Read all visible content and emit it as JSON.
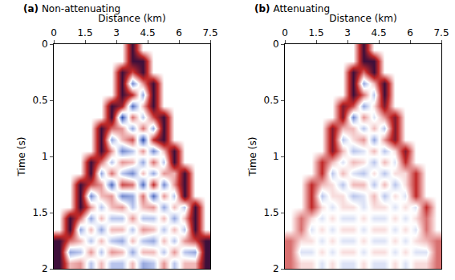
{
  "chart_data": [
    {
      "type": "heatmap",
      "title": "(a) Non-attenuating",
      "x_label": "Distance (km)",
      "y_label": "Time (s)",
      "x": [
        0.25,
        0.75,
        1.25,
        1.75,
        2.25,
        2.75,
        3.25,
        3.75,
        4.25,
        4.75,
        5.25,
        5.75,
        6.25,
        6.75,
        7.25
      ],
      "y": [
        0.05,
        0.15,
        0.25,
        0.35,
        0.45,
        0.55,
        0.65,
        0.75,
        0.85,
        0.95,
        1.05,
        1.15,
        1.25,
        1.35,
        1.45,
        1.55,
        1.65,
        1.75,
        1.85,
        1.95
      ],
      "z": [
        [
          0,
          0,
          0,
          0,
          0,
          0,
          0,
          1,
          0,
          0,
          0,
          0,
          0,
          0,
          0
        ],
        [
          0,
          0,
          0,
          0,
          0,
          0,
          0,
          1,
          1,
          0,
          0,
          0,
          0,
          0,
          0
        ],
        [
          0,
          0,
          0,
          0,
          0,
          0,
          1,
          0.5,
          1,
          0,
          0,
          0,
          0,
          0,
          0
        ],
        [
          0,
          0,
          0,
          0,
          0,
          0,
          1,
          -0.4,
          0.3,
          1,
          0,
          0,
          0,
          0,
          0
        ],
        [
          0,
          0,
          0,
          0,
          0,
          0,
          1,
          0.6,
          -0.3,
          1,
          0,
          0,
          0,
          0,
          0
        ],
        [
          0,
          0,
          0,
          0,
          0,
          1,
          0.7,
          -0.5,
          0.2,
          1,
          0,
          0,
          0,
          0,
          0
        ],
        [
          0,
          0,
          0,
          0,
          0,
          1,
          -0.6,
          0.4,
          -0.2,
          0.5,
          1,
          0,
          0,
          0,
          0
        ],
        [
          0,
          0,
          0,
          0,
          1,
          0.4,
          0.3,
          -0.3,
          0.4,
          -0.3,
          1,
          0,
          0,
          0,
          0
        ],
        [
          0,
          0,
          0,
          0,
          1,
          -0.3,
          0.2,
          0.5,
          -0.6,
          0.6,
          1,
          0,
          0,
          0,
          0
        ],
        [
          0,
          0,
          0,
          0,
          1,
          0.3,
          -0.4,
          -0.2,
          0.3,
          -0.4,
          0.2,
          1,
          0,
          0,
          0
        ],
        [
          0,
          0,
          0,
          1,
          0.4,
          -0.2,
          0.3,
          0.2,
          -0.3,
          0.4,
          -0.2,
          1,
          0,
          0,
          0
        ],
        [
          0,
          0,
          0,
          1,
          -0.3,
          0.4,
          -0.2,
          -0.4,
          0.2,
          -0.3,
          0.3,
          0.2,
          1,
          0,
          0
        ],
        [
          0,
          0,
          1,
          0.5,
          0.3,
          -0.5,
          0.5,
          0.4,
          -0.5,
          0.6,
          -0.4,
          0.3,
          1,
          0,
          0
        ],
        [
          0,
          0,
          1,
          -0.4,
          0.2,
          0.3,
          -0.4,
          -0.3,
          0.4,
          -0.5,
          0.3,
          -0.2,
          1,
          0,
          0
        ],
        [
          0,
          0,
          1,
          0.3,
          -0.2,
          0.2,
          0.3,
          -0.2,
          0.2,
          0.3,
          -0.3,
          0.2,
          -0.2,
          1,
          0
        ],
        [
          0,
          1,
          0.4,
          -0.3,
          0.2,
          -0.2,
          -0.2,
          0.3,
          -0.2,
          -0.2,
          0.2,
          -0.3,
          0.2,
          1,
          0
        ],
        [
          0,
          1,
          -0.3,
          0.2,
          -0.3,
          0.2,
          0.2,
          -0.2,
          0.3,
          0.2,
          -0.2,
          0.2,
          -0.2,
          1,
          0
        ],
        [
          1,
          0.4,
          0.2,
          -0.2,
          0.2,
          -0.2,
          -0.3,
          0.2,
          -0.2,
          -0.3,
          0.2,
          -0.2,
          0.3,
          0.5,
          1
        ],
        [
          1,
          -0.3,
          -0.2,
          0.3,
          -0.2,
          0.3,
          0.2,
          -0.3,
          0.2,
          0.2,
          -0.2,
          0.3,
          -0.2,
          -0.3,
          1
        ],
        [
          1,
          0.2,
          0.3,
          -0.2,
          0.2,
          -0.2,
          -0.2,
          0.2,
          -0.3,
          -0.2,
          0.3,
          -0.2,
          0.2,
          0.2,
          1
        ]
      ],
      "zlim": [
        -1,
        1
      ],
      "xlim": [
        0,
        7.5
      ],
      "xticks": [
        0,
        1.5,
        3,
        4.5,
        6,
        7.5
      ],
      "ylim": [
        2,
        0
      ],
      "yticks": [
        0,
        0.5,
        1,
        1.5,
        2
      ]
    },
    {
      "type": "heatmap",
      "title": "(b) Attenuating",
      "x_label": "Distance (km)",
      "y_label": "Time (s)",
      "x": [
        0.25,
        0.75,
        1.25,
        1.75,
        2.25,
        2.75,
        3.25,
        3.75,
        4.25,
        4.75,
        5.25,
        5.75,
        6.25,
        6.75,
        7.25
      ],
      "y": [
        0.05,
        0.15,
        0.25,
        0.35,
        0.45,
        0.55,
        0.65,
        0.75,
        0.85,
        0.95,
        1.05,
        1.15,
        1.25,
        1.35,
        1.45,
        1.55,
        1.65,
        1.75,
        1.85,
        1.95
      ],
      "z": [
        [
          0,
          0,
          0,
          0,
          0,
          0,
          0,
          1,
          0,
          0,
          0,
          0,
          0,
          0,
          0
        ],
        [
          0,
          0,
          0,
          0,
          0,
          0,
          0,
          1,
          1,
          0,
          0,
          0,
          0,
          0,
          0
        ],
        [
          0,
          0,
          0,
          0,
          0,
          0,
          1,
          0.4,
          1,
          0,
          0,
          0,
          0,
          0,
          0
        ],
        [
          0,
          0,
          0,
          0,
          0,
          0,
          1,
          -0.3,
          0.2,
          1,
          0,
          0,
          0,
          0,
          0
        ],
        [
          0,
          0,
          0,
          0,
          0,
          0,
          1,
          0.4,
          -0.2,
          1,
          0,
          0,
          0,
          0,
          0
        ],
        [
          0,
          0,
          0,
          0,
          0,
          0.8,
          0.5,
          -0.3,
          0.1,
          0.8,
          0,
          0,
          0,
          0,
          0
        ],
        [
          0,
          0,
          0,
          0,
          0,
          0.8,
          -0.4,
          0.3,
          -0.1,
          0.3,
          0.8,
          0,
          0,
          0,
          0
        ],
        [
          0,
          0,
          0,
          0,
          0.8,
          0.2,
          0.2,
          -0.2,
          0.2,
          -0.2,
          0.8,
          0,
          0,
          0,
          0
        ],
        [
          0,
          0,
          0,
          0,
          0.8,
          -0.2,
          0.1,
          0.3,
          -0.3,
          0.3,
          0.8,
          0,
          0,
          0,
          0
        ],
        [
          0,
          0,
          0,
          0,
          0.8,
          0.2,
          -0.2,
          -0.1,
          0.2,
          -0.2,
          0.1,
          0.8,
          0,
          0,
          0
        ],
        [
          0,
          0,
          0,
          0.6,
          0.2,
          -0.1,
          0.2,
          0.1,
          -0.2,
          0.2,
          -0.1,
          0.6,
          0,
          0,
          0
        ],
        [
          0,
          0,
          0,
          0.6,
          -0.2,
          0.2,
          -0.1,
          -0.2,
          0.1,
          -0.2,
          0.1,
          0.1,
          0.6,
          0,
          0
        ],
        [
          0,
          0,
          0.6,
          0.2,
          0.1,
          -0.2,
          0.2,
          0.2,
          -0.2,
          0.2,
          -0.2,
          0.1,
          0.6,
          0,
          0
        ],
        [
          0,
          0,
          0.6,
          -0.2,
          0.1,
          0.1,
          -0.2,
          -0.1,
          0.2,
          -0.2,
          0.1,
          -0.1,
          0.6,
          0,
          0
        ],
        [
          0,
          0,
          0.6,
          0.1,
          -0.1,
          0.1,
          0.1,
          -0.1,
          0.1,
          0.1,
          -0.1,
          0.1,
          -0.1,
          0.6,
          0
        ],
        [
          0,
          0.4,
          0.1,
          -0.1,
          0.1,
          -0.1,
          -0.1,
          0.1,
          -0.1,
          -0.1,
          0.1,
          -0.1,
          0.1,
          0.4,
          0
        ],
        [
          0,
          0.4,
          -0.1,
          0.1,
          -0.1,
          0.1,
          0.1,
          -0.1,
          0.1,
          0.1,
          -0.1,
          0.1,
          -0.1,
          0.4,
          0
        ],
        [
          0.4,
          0.1,
          0.1,
          -0.1,
          0.1,
          -0.1,
          -0.1,
          0.1,
          -0.1,
          -0.1,
          0.1,
          -0.1,
          0.1,
          0.2,
          0.4
        ],
        [
          0.4,
          -0.1,
          -0.1,
          0.1,
          -0.1,
          0.1,
          0.1,
          -0.1,
          0.1,
          0.1,
          -0.1,
          0.1,
          -0.1,
          -0.1,
          0.4
        ],
        [
          0.4,
          0.1,
          0.1,
          -0.1,
          0.1,
          -0.1,
          -0.1,
          0.1,
          -0.1,
          -0.1,
          0.1,
          -0.1,
          0.1,
          0.1,
          0.4
        ]
      ],
      "zlim": [
        -1,
        1
      ],
      "xlim": [
        0,
        7.5
      ],
      "xticks": [
        0,
        1.5,
        3,
        4.5,
        6,
        7.5
      ],
      "ylim": [
        2,
        0
      ],
      "yticks": [
        0,
        0.5,
        1,
        1.5,
        2
      ]
    }
  ]
}
